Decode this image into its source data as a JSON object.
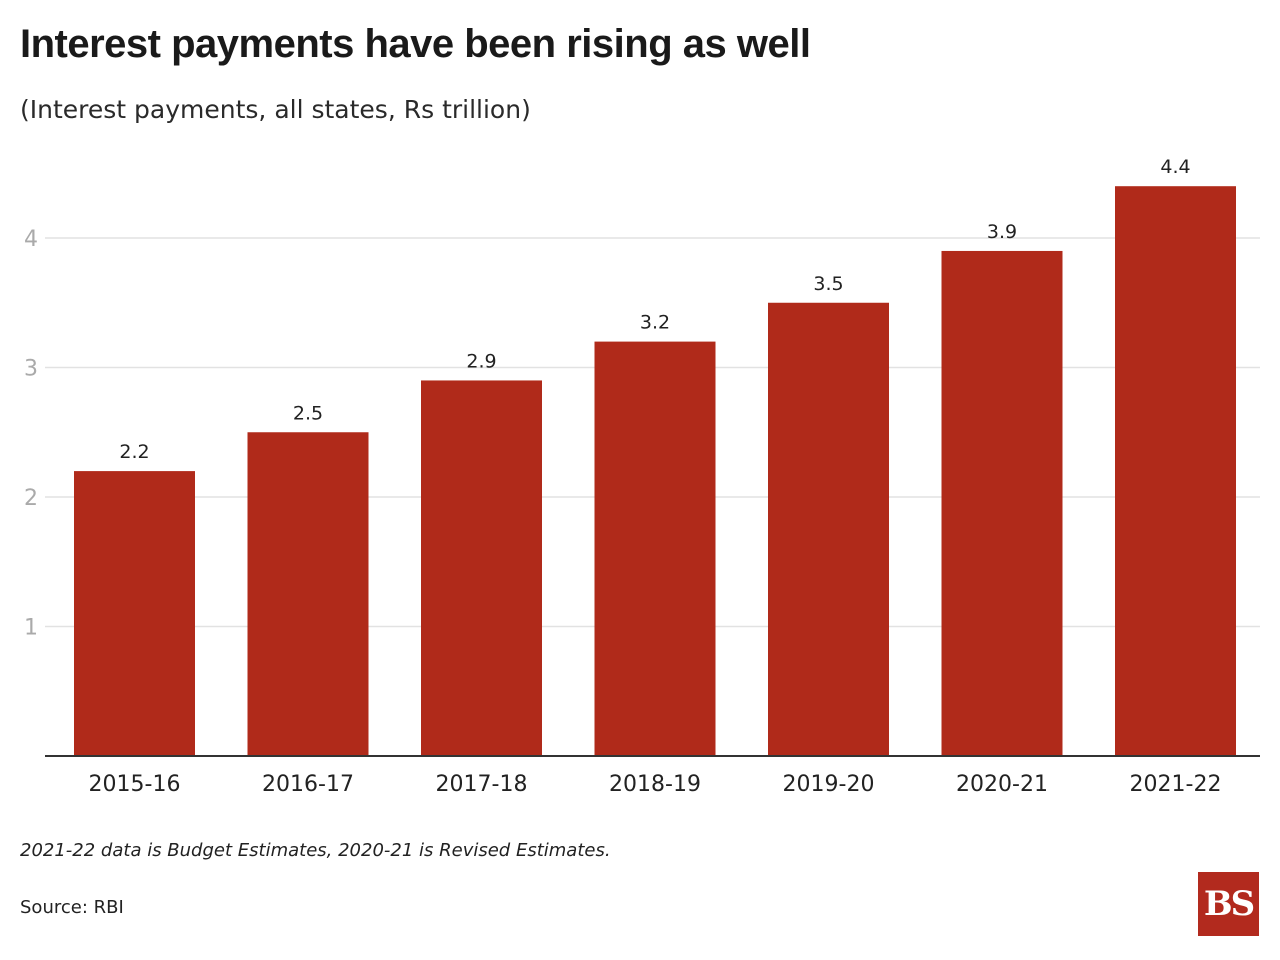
{
  "title": "Interest payments have been rising as well",
  "subtitle": "(Interest payments, all states, Rs trillion)",
  "note": "2021-22 data is Budget Estimates, 2020-21 is Revised Estimates.",
  "source": "Source: RBI",
  "logo_text": "BS",
  "colors": {
    "bar": "#b02a1a",
    "grid": "#e2e2e2",
    "axis": "#333333",
    "tick_label": "#aaaaaa",
    "logo_bg": "#b22a1e"
  },
  "chart_data": {
    "type": "bar",
    "categories": [
      "2015-16",
      "2016-17",
      "2017-18",
      "2018-19",
      "2019-20",
      "2020-21",
      "2021-22"
    ],
    "values": [
      2.2,
      2.5,
      2.9,
      3.2,
      3.5,
      3.9,
      4.4
    ],
    "value_labels": [
      "2.2",
      "2.5",
      "2.9",
      "3.2",
      "3.5",
      "3.9",
      "4.4"
    ],
    "yticks": [
      1,
      2,
      3,
      4
    ],
    "ylim": [
      0,
      4.4
    ],
    "grid": true,
    "legend": false
  }
}
